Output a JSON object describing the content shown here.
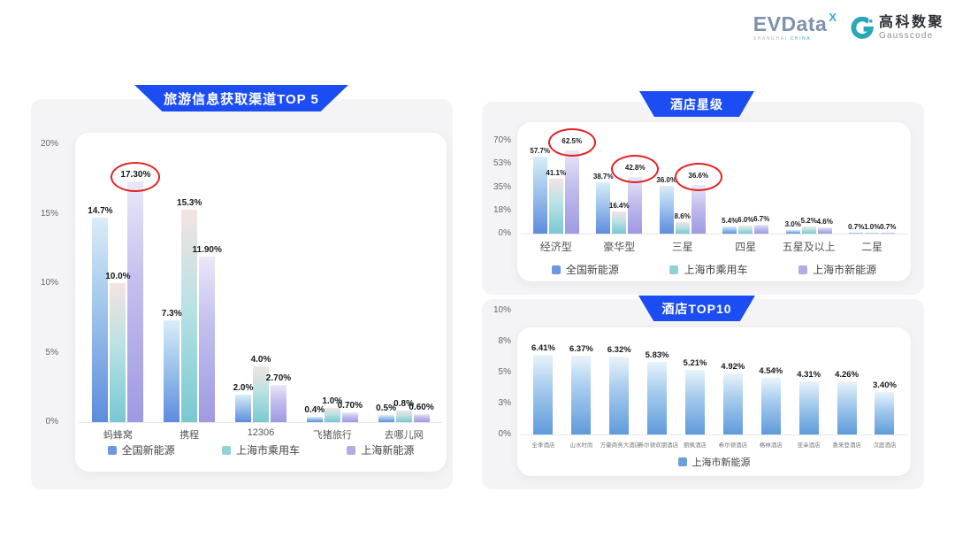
{
  "logos": {
    "evdata": {
      "name": "EVData",
      "sup": "X",
      "caption_left": "SHANGHAI",
      "caption_right": "CHINA"
    },
    "gausscode": {
      "cn": "高科数聚",
      "en": "Gausscode"
    }
  },
  "colors": {
    "banner_blue": "#1c4df2",
    "highlight_red": "#e32222",
    "series_national_blue": "#6d97e0",
    "series_shanghai_teal": "#8fd2d8",
    "series_shanghai_purple": "#b1abe8",
    "hotel_bar_blue": "#6a9fdd",
    "panel_gray": "#f4f4f6"
  },
  "chart_data": [
    {
      "id": "travel",
      "type": "bar",
      "title": "旅游信息获取渠道TOP 5",
      "ylim": [
        0,
        20
      ],
      "axis_max": 20,
      "y_ticks": [
        "20%",
        "15%",
        "10%",
        "5%",
        "0%"
      ],
      "grid": false,
      "legend_position": "bottom",
      "categories": [
        "蚂蜂窝",
        "携程",
        "12306",
        "飞猪旅行",
        "去哪儿网"
      ],
      "series": [
        {
          "name": "全国新能源",
          "values": [
            14.7,
            7.3,
            2.0,
            0.4,
            0.5
          ],
          "labels": [
            "14.7%",
            "7.3%",
            "2.0%",
            "0.4%",
            "0.5%"
          ]
        },
        {
          "name": "上海市乘用车",
          "values": [
            10.0,
            15.3,
            4.0,
            1.0,
            0.8
          ],
          "labels": [
            "10.0%",
            "15.3%",
            "4.0%",
            "1.0%",
            "0.8%"
          ]
        },
        {
          "name": "上海新能源",
          "values": [
            17.3,
            11.9,
            2.7,
            0.7,
            0.6
          ],
          "labels": [
            "17.30%",
            "11.90%",
            "2.70%",
            "0.70%",
            "0.60%"
          ]
        }
      ],
      "circled": [
        {
          "series": 2,
          "category": 0
        }
      ]
    },
    {
      "id": "stars",
      "type": "bar",
      "title": "酒店星级",
      "ylim": [
        0,
        70
      ],
      "axis_max": 70,
      "y_ticks": [
        "70%",
        "53%",
        "35%",
        "18%",
        "0%"
      ],
      "grid": false,
      "legend_position": "bottom",
      "categories": [
        "经济型",
        "豪华型",
        "三星",
        "四星",
        "五星及以上",
        "二星"
      ],
      "series": [
        {
          "name": "全国新能源",
          "values": [
            57.7,
            38.7,
            36.0,
            5.4,
            3.0,
            0.7
          ],
          "labels": [
            "57.7%",
            "38.7%",
            "36.0%",
            "5.4%",
            "3.0%",
            "0.7%"
          ]
        },
        {
          "name": "上海市乘用车",
          "values": [
            41.1,
            16.4,
            8.6,
            6.0,
            5.2,
            1.0
          ],
          "labels": [
            "41.1%",
            "16.4%",
            "8.6%",
            "6.0%",
            "5.2%",
            "1.0%"
          ]
        },
        {
          "name": "上海市新能源",
          "values": [
            62.5,
            42.8,
            36.6,
            6.7,
            4.6,
            0.7
          ],
          "labels": [
            "62.5%",
            "42.8%",
            "36.6%",
            "6.7%",
            "4.6%",
            "0.7%"
          ]
        }
      ],
      "circled": [
        {
          "series": 2,
          "category": 0
        },
        {
          "series": 2,
          "category": 1
        },
        {
          "series": 2,
          "category": 2
        }
      ]
    },
    {
      "id": "hotels",
      "type": "bar",
      "title": "酒店TOP10",
      "ylim": [
        0,
        10
      ],
      "axis_max": 10,
      "y_ticks": [
        "10%",
        "8%",
        "5%",
        "3%",
        "0%"
      ],
      "grid": false,
      "legend_position": "bottom",
      "categories": [
        "全季酒店",
        "山水时尚",
        "万豪商务大酒店",
        "希尔顿欢朋酒店",
        "丽枫酒店",
        "希尔顿酒店",
        "格林酒店",
        "亚朵酒店",
        "喜来登酒店",
        "汉庭酒店"
      ],
      "series": [
        {
          "name": "上海市新能源",
          "values": [
            6.41,
            6.37,
            6.32,
            5.83,
            5.21,
            4.92,
            4.54,
            4.31,
            4.26,
            3.4
          ],
          "labels": [
            "6.41%",
            "6.37%",
            "6.32%",
            "5.83%",
            "5.21%",
            "4.92%",
            "4.54%",
            "4.31%",
            "4.26%",
            "3.40%"
          ]
        }
      ],
      "circled": []
    }
  ]
}
